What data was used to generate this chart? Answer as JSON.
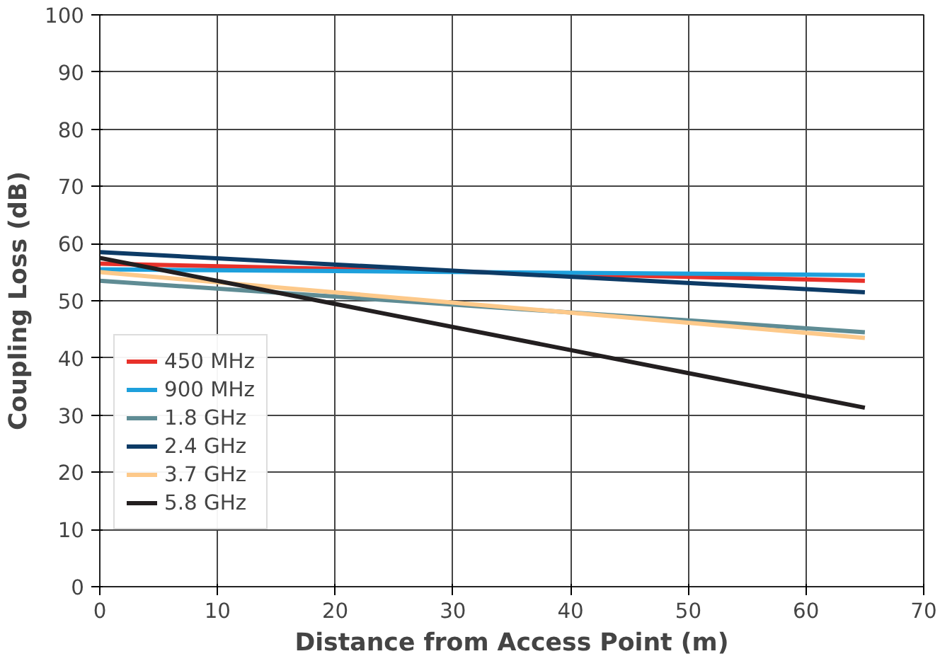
{
  "chart_data": {
    "type": "line",
    "xlabel": "Distance from Access Point (m)",
    "ylabel": "Coupling Loss (dB)",
    "x": [
      0,
      65
    ],
    "series": [
      {
        "name": "450 MHz",
        "color": "#e8312a",
        "values": [
          56.5,
          53.5
        ]
      },
      {
        "name": "900 MHz",
        "color": "#1ea0dc",
        "values": [
          55.5,
          54.5
        ]
      },
      {
        "name": "1.8 GHz",
        "color": "#5f8c94",
        "values": [
          53.5,
          44.5
        ]
      },
      {
        "name": "2.4 GHz",
        "color": "#0d3b66",
        "values": [
          58.5,
          51.5
        ]
      },
      {
        "name": "3.7 GHz",
        "color": "#fdc98a",
        "values": [
          55,
          43.5
        ]
      },
      {
        "name": "5.8 GHz",
        "color": "#231f20",
        "values": [
          57.5,
          31.3
        ]
      }
    ],
    "xlim": [
      0,
      70
    ],
    "ylim": [
      0,
      100
    ],
    "xticks": [
      0,
      10,
      20,
      30,
      40,
      50,
      60,
      70
    ],
    "yticks": [
      0,
      10,
      20,
      30,
      40,
      50,
      60,
      70,
      80,
      90,
      100
    ],
    "grid": true,
    "legend": "bottom left",
    "marker": "none",
    "line_style": "solid"
  }
}
